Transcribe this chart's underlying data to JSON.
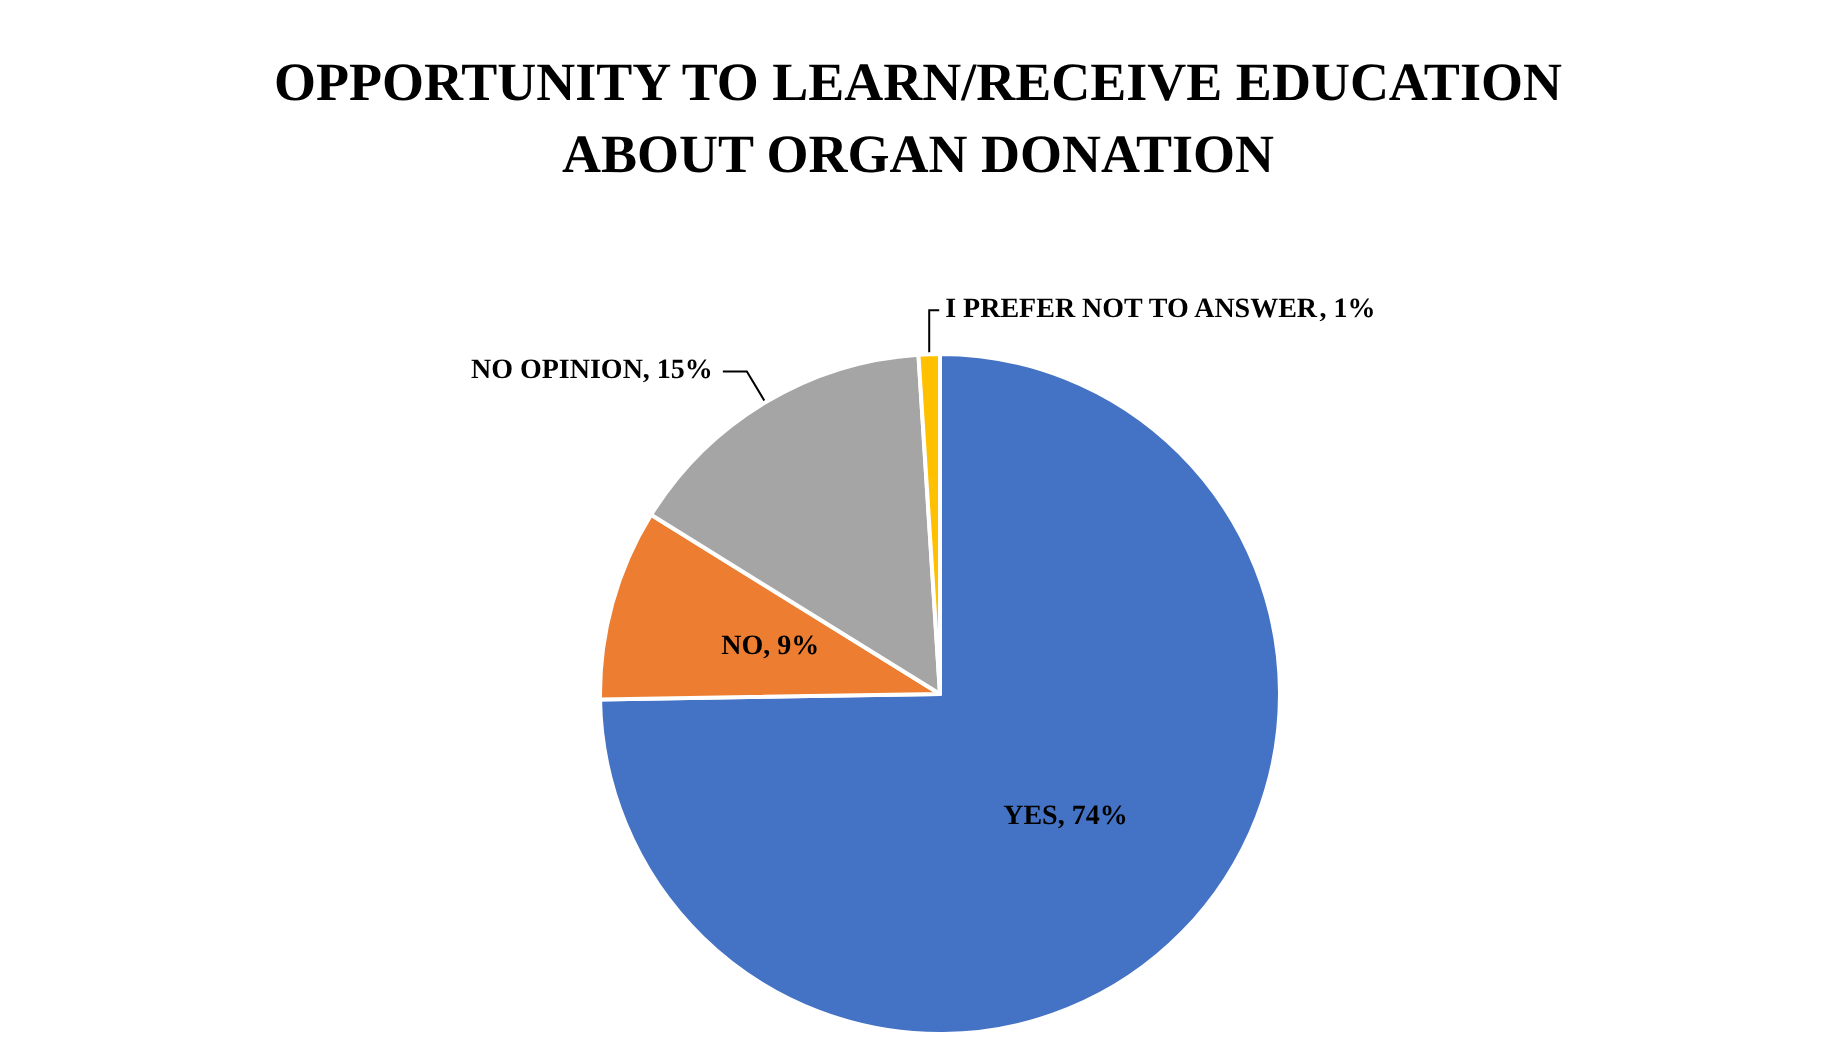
{
  "chart_data": {
    "type": "pie",
    "title": "OPPORTUNITY TO LEARN/RECEIVE EDUCATION\nABOUT ORGAN DONATION",
    "categories": [
      "YES",
      "NO",
      "NO OPINION",
      "I PREFER NOT TO ANSWER"
    ],
    "values": [
      74,
      9,
      15,
      1
    ],
    "colors": [
      "#4472c4",
      "#ed7d31",
      "#a5a5a5",
      "#ffc000"
    ],
    "value_labels": [
      ", 74%",
      ", 9%",
      ", 15%",
      ", 1%"
    ],
    "legend": false
  }
}
